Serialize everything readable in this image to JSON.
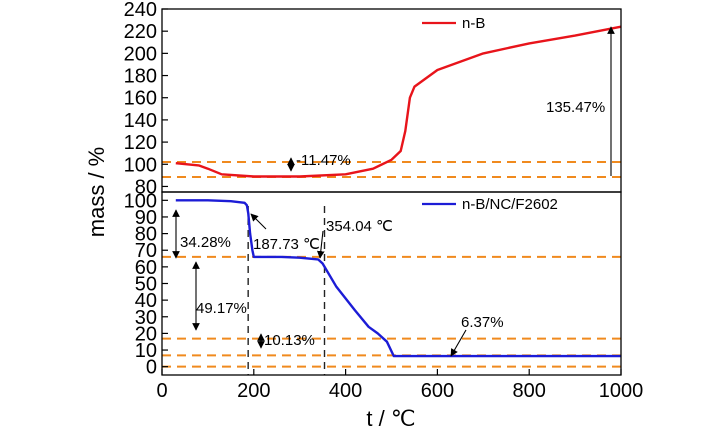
{
  "chart_data": [
    {
      "type": "line",
      "panel": "top",
      "xlabel": "t / ℃",
      "ylabel": "mass / %",
      "xlim": [
        0,
        1000
      ],
      "ylim": [
        75,
        240
      ],
      "yticks": [
        80,
        100,
        120,
        140,
        160,
        180,
        200,
        220,
        240
      ],
      "legend": {
        "placement": "top-center",
        "entries": [
          "n-B"
        ]
      },
      "series": [
        {
          "name": "n-B",
          "color": "#e8141b",
          "x": [
            30,
            80,
            100,
            130,
            200,
            300,
            400,
            460,
            500,
            520,
            530,
            540,
            550,
            600,
            700,
            800,
            900,
            1000
          ],
          "y": [
            101,
            99,
            96,
            91,
            89,
            89,
            91,
            96,
            104,
            112,
            130,
            160,
            170,
            185,
            200,
            209,
            216,
            224
          ]
        }
      ],
      "reference_lines": [
        {
          "orientation": "horizontal",
          "y": 102,
          "style": "dashed",
          "color": "#f08a1e"
        },
        {
          "orientation": "horizontal",
          "y": 88.5,
          "style": "dashed",
          "color": "#f08a1e"
        }
      ],
      "annotations": [
        {
          "text": "-11.47%",
          "x": 290,
          "y": 95
        },
        {
          "text": "135.47%",
          "x": 1000,
          "y": 155
        }
      ]
    },
    {
      "type": "line",
      "panel": "bottom",
      "xlabel": "t / ℃",
      "ylabel": "mass / %",
      "xlim": [
        0,
        1000
      ],
      "ylim": [
        -5,
        105
      ],
      "xticks": [
        0,
        200,
        400,
        600,
        800,
        1000
      ],
      "yticks": [
        0,
        10,
        20,
        30,
        40,
        50,
        60,
        70,
        80,
        90,
        100
      ],
      "legend": {
        "placement": "top-right",
        "entries": [
          "n-B/NC/F2602"
        ]
      },
      "series": [
        {
          "name": "n-B/NC/F2602",
          "color": "#1c1cd6",
          "x": [
            30,
            100,
            150,
            180,
            185,
            188,
            192,
            197,
            200,
            260,
            300,
            340,
            350,
            380,
            420,
            450,
            470,
            490,
            505,
            1000
          ],
          "y": [
            100,
            100,
            99.5,
            98.5,
            97,
            92,
            80,
            70,
            66,
            66,
            65.5,
            64.5,
            62,
            48,
            34,
            24,
            20,
            15,
            6.37,
            6.37
          ]
        }
      ],
      "reference_lines": [
        {
          "orientation": "horizontal",
          "y": 66,
          "style": "dashed",
          "color": "#f08a1e"
        },
        {
          "orientation": "horizontal",
          "y": 16.9,
          "style": "dashed",
          "color": "#f08a1e"
        },
        {
          "orientation": "horizontal",
          "y": 6.8,
          "style": "dashed",
          "color": "#f08a1e"
        },
        {
          "orientation": "horizontal",
          "y": 0,
          "style": "dashed",
          "color": "#f08a1e"
        },
        {
          "orientation": "vertical",
          "x": 187.73,
          "style": "dashed",
          "color": "#222222"
        },
        {
          "orientation": "vertical",
          "x": 354.04,
          "style": "dashed",
          "color": "#222222"
        }
      ],
      "annotations": [
        {
          "text": "34.28%",
          "x": 40,
          "y": 83
        },
        {
          "text": "187.73 ℃",
          "x": 187.73,
          "y": 80
        },
        {
          "text": "354.04 ℃",
          "x": 354.04,
          "y": 92
        },
        {
          "text": "49.17%",
          "x": 80,
          "y": 40
        },
        {
          "text": "10.13%",
          "x": 200,
          "y": 11
        },
        {
          "text": "6.37%",
          "x": 640,
          "y": 24
        }
      ]
    }
  ]
}
